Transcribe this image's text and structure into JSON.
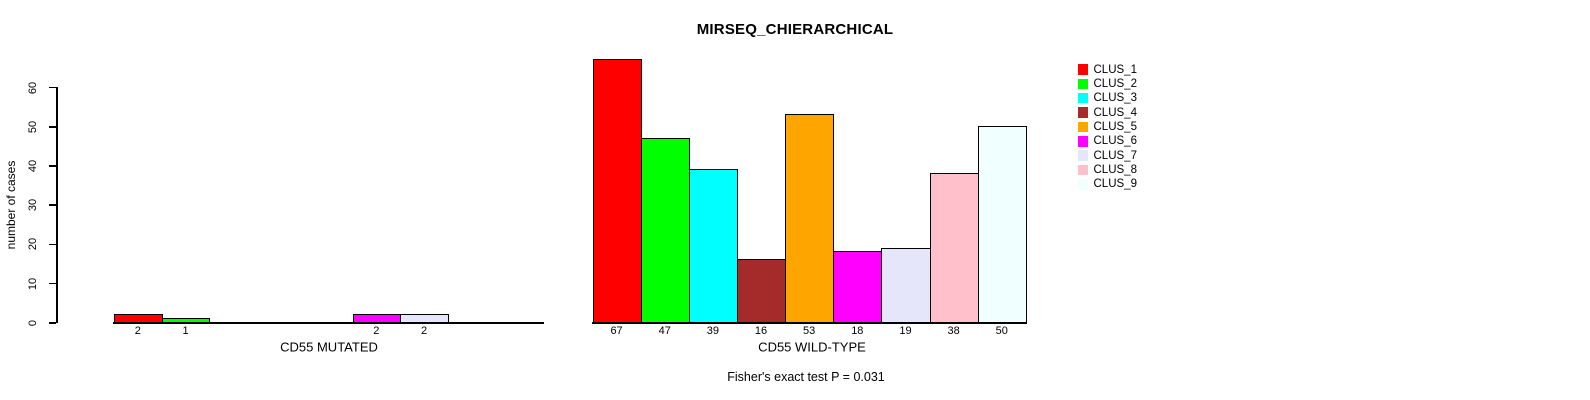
{
  "title": "MIRSEQ_CHIERARCHICAL",
  "y_axis": {
    "label": "number of cases",
    "ticks": [
      0,
      10,
      20,
      30,
      40,
      50,
      60
    ]
  },
  "footnote": "Fisher's exact test P = 0.031",
  "legend": {
    "position": "right",
    "entries": [
      {
        "label": "CLUS_1",
        "color": "#FF0000"
      },
      {
        "label": "CLUS_2",
        "color": "#00FF00"
      },
      {
        "label": "CLUS_3",
        "color": "#00FFFF"
      },
      {
        "label": "CLUS_4",
        "color": "#A52A2A"
      },
      {
        "label": "CLUS_5",
        "color": "#FFA500"
      },
      {
        "label": "CLUS_6",
        "color": "#FF00FF"
      },
      {
        "label": "CLUS_7",
        "color": "#E6E6FA"
      },
      {
        "label": "CLUS_8",
        "color": "#FFC0CB"
      },
      {
        "label": "CLUS_9",
        "color": "#F0FFFF"
      }
    ]
  },
  "chart_data": [
    {
      "type": "bar",
      "title": "MIRSEQ_CHIERARCHICAL",
      "xlabel": "CD55 MUTATED",
      "ylabel": "number of cases",
      "categories": [
        "CLUS_1",
        "CLUS_2",
        "CLUS_3",
        "CLUS_4",
        "CLUS_5",
        "CLUS_6",
        "CLUS_7",
        "CLUS_8",
        "CLUS_9"
      ],
      "values": [
        2,
        1,
        0,
        0,
        0,
        2,
        2,
        0,
        0
      ],
      "bar_labels": [
        "2",
        "1",
        "",
        "",
        "",
        "2",
        "2",
        "",
        ""
      ],
      "colors": [
        "#FF0000",
        "#00FF00",
        "#00FFFF",
        "#A52A2A",
        "#FFA500",
        "#FF00FF",
        "#E6E6FA",
        "#FFC0CB",
        "#F0FFFF"
      ],
      "ylim": [
        0,
        70
      ],
      "yticks": [
        0,
        10,
        20,
        30,
        40,
        50,
        60
      ],
      "grid": false,
      "legend_position": "right"
    },
    {
      "type": "bar",
      "title": "MIRSEQ_CHIERARCHICAL",
      "xlabel": "CD55 WILD-TYPE",
      "ylabel": "number of cases",
      "categories": [
        "CLUS_1",
        "CLUS_2",
        "CLUS_3",
        "CLUS_4",
        "CLUS_5",
        "CLUS_6",
        "CLUS_7",
        "CLUS_8",
        "CLUS_9"
      ],
      "values": [
        67,
        47,
        39,
        16,
        53,
        18,
        19,
        38,
        50
      ],
      "bar_labels": [
        "67",
        "47",
        "39",
        "16",
        "53",
        "18",
        "19",
        "38",
        "50"
      ],
      "colors": [
        "#FF0000",
        "#00FF00",
        "#00FFFF",
        "#A52A2A",
        "#FFA500",
        "#FF00FF",
        "#E6E6FA",
        "#FFC0CB",
        "#F0FFFF"
      ],
      "ylim": [
        0,
        70
      ],
      "yticks": [
        0,
        10,
        20,
        30,
        40,
        50,
        60
      ],
      "grid": false,
      "legend_position": "right"
    }
  ]
}
